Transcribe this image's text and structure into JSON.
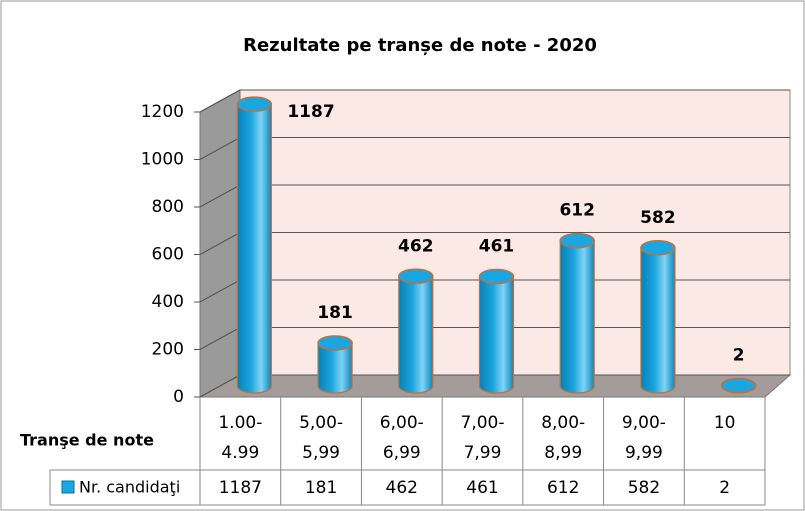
{
  "chart_data": {
    "type": "bar3d",
    "title": "Rezultate pe tranșe de note - 2020",
    "x_label": "Tranşe de note",
    "categories": [
      "1.00-4.99",
      "5,00-5,99",
      "6,00-6,99",
      "7,00-7,99",
      "8,00-8,99",
      "9,00-9,99",
      "10"
    ],
    "series": [
      {
        "name": "Nr. candidaţi",
        "color": "#1aa6e0",
        "values": [
          1187,
          181,
          462,
          461,
          612,
          582,
          2
        ]
      }
    ],
    "ylim": [
      0,
      1200
    ],
    "yticks": [
      0,
      200,
      400,
      600,
      800,
      1000,
      1200
    ],
    "grid": true
  }
}
